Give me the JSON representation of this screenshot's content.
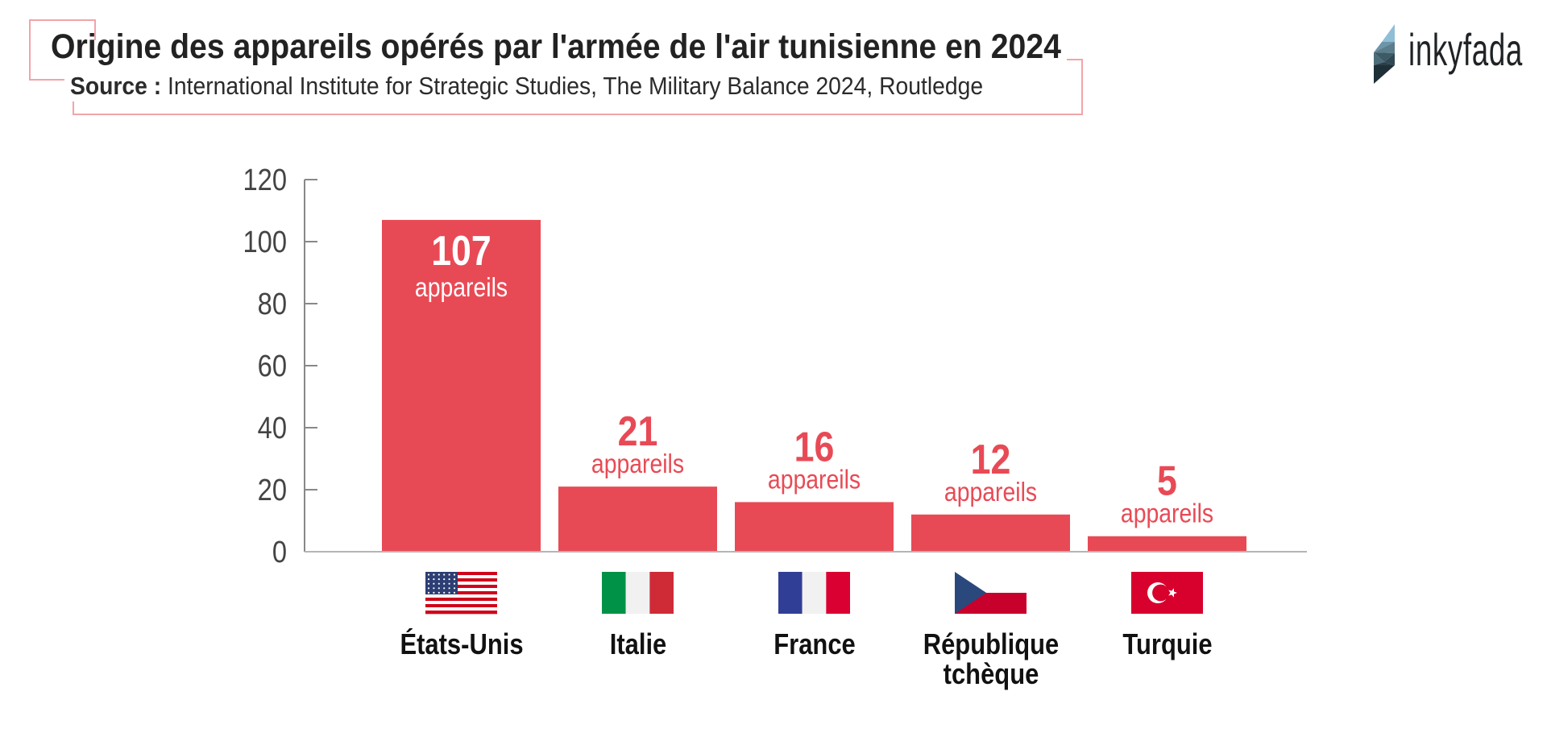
{
  "header": {
    "title": "Origine des appareils opérés par l'armée de l'air tunisienne en 2024",
    "source_label": "Source :",
    "source_text": "International Institute for Strategic Studies, The Military Balance 2024, Routledge"
  },
  "logo": {
    "text": "inkyfada",
    "icon": "inkyfada-crystal-logo-icon"
  },
  "colors": {
    "bar": "#E84A55",
    "value_label_outside": "#E84A55",
    "value_label_inside": "#FFFFFF",
    "axis": "#888888",
    "tick_label": "#444444",
    "bracket": "#F2A4A9",
    "title": "#222222"
  },
  "chart_data": {
    "type": "bar",
    "title": "Origine des appareils opérés par l'armée de l'air tunisienne en 2024",
    "subtitle": "Source : International Institute for Strategic Studies, The Military Balance 2024, Routledge",
    "xlabel": "",
    "ylabel": "",
    "ylim": [
      0,
      120
    ],
    "yticks": [
      0,
      20,
      40,
      60,
      80,
      100,
      120
    ],
    "grid": false,
    "legend": "none",
    "unit_label": "appareils",
    "categories": [
      "États-Unis",
      "Italie",
      "France",
      "République tchèque",
      "Turquie"
    ],
    "category_lines": [
      [
        "États-Unis"
      ],
      [
        "Italie"
      ],
      [
        "France"
      ],
      [
        "République",
        "tchèque"
      ],
      [
        "Turquie"
      ]
    ],
    "flags": [
      "us-flag-icon",
      "italy-flag-icon",
      "france-flag-icon",
      "czech-flag-icon",
      "turkey-flag-icon"
    ],
    "values": [
      107,
      21,
      16,
      12,
      5
    ],
    "data_labels": [
      "107",
      "21",
      "16",
      "12",
      "5"
    ]
  }
}
